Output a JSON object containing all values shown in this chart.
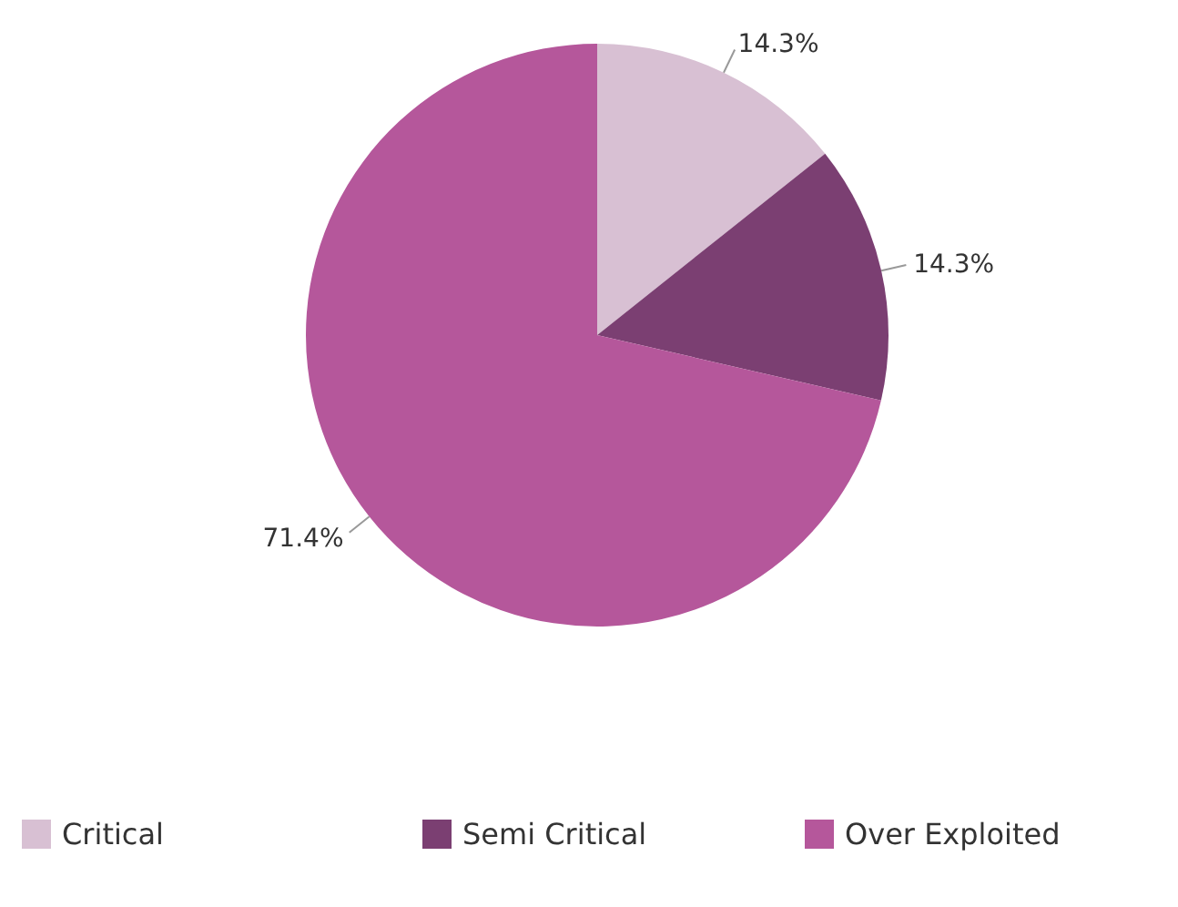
{
  "chart_data": {
    "type": "pie",
    "categories": [
      "Critical",
      "Semi Critical",
      "Over Exploited"
    ],
    "values": [
      14.3,
      14.3,
      71.4
    ],
    "colors": [
      "#d8c0d3",
      "#7b3f72",
      "#b5579b"
    ],
    "value_labels": [
      "14.3%",
      "14.3%",
      "71.4%"
    ],
    "legend": "bottom"
  }
}
